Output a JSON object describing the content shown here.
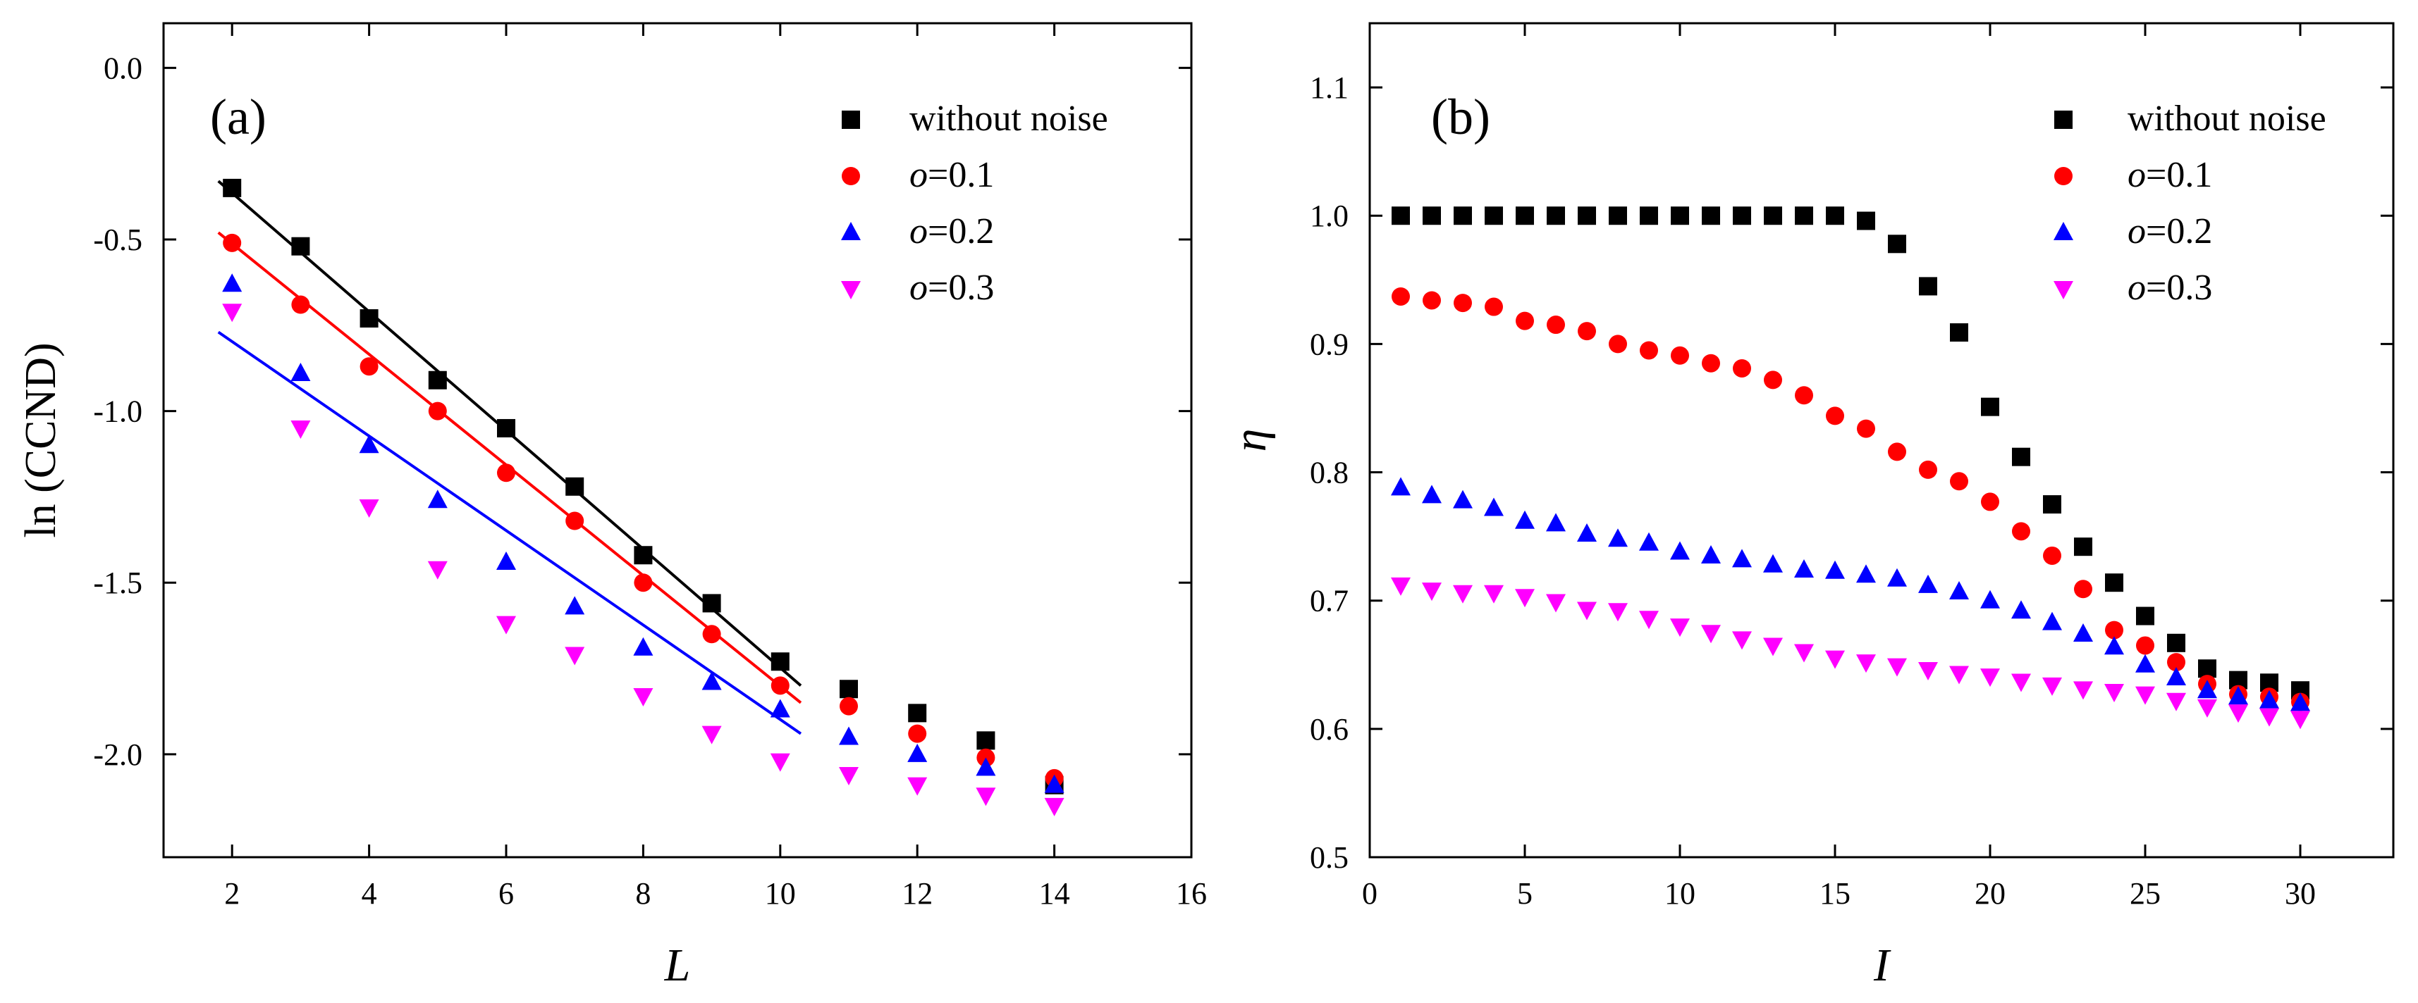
{
  "chart_data": [
    {
      "type": "scatter",
      "panel_label": "(a)",
      "xlabel": "L",
      "ylabel": "ln (CCND)",
      "xlim": [
        1,
        16
      ],
      "ylim": [
        -2.3,
        0.13
      ],
      "xticks": [
        2,
        4,
        6,
        8,
        10,
        12,
        14,
        16
      ],
      "yticks": [
        0.0,
        -0.5,
        -1.0,
        -1.5,
        -2.0
      ],
      "xtick_labels": [
        "2",
        "4",
        "6",
        "8",
        "10",
        "12",
        "14",
        "16"
      ],
      "ytick_labels": [
        "0.0",
        "-0.5",
        "-1.0",
        "-1.5",
        "-2.0"
      ],
      "legend_position": "top-right",
      "series": [
        {
          "name": "without noise",
          "label_italic": "",
          "label_rest": "without noise",
          "marker": "square",
          "color": "#000000",
          "x": [
            2,
            3,
            4,
            5,
            6,
            7,
            8,
            9,
            10,
            11,
            12,
            13,
            14
          ],
          "y": [
            -0.35,
            -0.52,
            -0.73,
            -0.91,
            -1.05,
            -1.22,
            -1.42,
            -1.56,
            -1.73,
            -1.81,
            -1.88,
            -1.96,
            -2.09
          ]
        },
        {
          "name": "o=0.1",
          "label_italic": "o",
          "label_rest": "=0.1",
          "marker": "circle",
          "color": "#ff0000",
          "x": [
            2,
            3,
            4,
            5,
            6,
            7,
            8,
            9,
            10,
            11,
            12,
            13,
            14
          ],
          "y": [
            -0.51,
            -0.69,
            -0.87,
            -1.0,
            -1.18,
            -1.32,
            -1.5,
            -1.65,
            -1.8,
            -1.86,
            -1.94,
            -2.01,
            -2.07
          ]
        },
        {
          "name": "o=0.2",
          "label_italic": "o",
          "label_rest": "=0.2",
          "marker": "triangle-up",
          "color": "#0000ff",
          "x": [
            2,
            3,
            4,
            5,
            6,
            7,
            8,
            9,
            10,
            11,
            12,
            13,
            14
          ],
          "y": [
            -0.63,
            -0.89,
            -1.1,
            -1.26,
            -1.44,
            -1.57,
            -1.69,
            -1.79,
            -1.87,
            -1.95,
            -2.0,
            -2.04,
            -2.09
          ]
        },
        {
          "name": "o=0.3",
          "label_italic": "o",
          "label_rest": "=0.3",
          "marker": "triangle-down",
          "color": "#ff00ff",
          "x": [
            2,
            3,
            4,
            5,
            6,
            7,
            8,
            9,
            10,
            11,
            12,
            13,
            14
          ],
          "y": [
            -0.71,
            -1.05,
            -1.28,
            -1.46,
            -1.62,
            -1.71,
            -1.83,
            -1.94,
            -2.02,
            -2.06,
            -2.09,
            -2.12,
            -2.15
          ]
        }
      ],
      "fit_lines": [
        {
          "series": "without noise",
          "color": "#000000",
          "x": [
            1.8,
            10.3
          ],
          "y": [
            -0.33,
            -1.8
          ]
        },
        {
          "series": "o=0.1",
          "color": "#ff0000",
          "x": [
            1.8,
            10.3
          ],
          "y": [
            -0.48,
            -1.85
          ]
        },
        {
          "series": "o=0.2",
          "color": "#0000ff",
          "x": [
            1.8,
            10.3
          ],
          "y": [
            -0.77,
            -1.94
          ]
        }
      ]
    },
    {
      "type": "scatter",
      "panel_label": "(b)",
      "xlabel": "I",
      "ylabel": "η",
      "xlim": [
        0,
        33
      ],
      "ylim": [
        0.5,
        1.15
      ],
      "xticks": [
        0,
        5,
        10,
        15,
        20,
        25,
        30
      ],
      "yticks": [
        0.5,
        0.6,
        0.7,
        0.8,
        0.9,
        1.0,
        1.1
      ],
      "xtick_labels": [
        "0",
        "5",
        "10",
        "15",
        "20",
        "25",
        "30"
      ],
      "ytick_labels": [
        "0.5",
        "0.6",
        "0.7",
        "0.8",
        "0.9",
        "1.0",
        "1.1"
      ],
      "legend_position": "top-right",
      "series": [
        {
          "name": "without noise",
          "label_italic": "",
          "label_rest": "without noise",
          "marker": "square",
          "color": "#000000",
          "x": [
            1,
            2,
            3,
            4,
            5,
            6,
            7,
            8,
            9,
            10,
            11,
            12,
            13,
            14,
            15,
            16,
            17,
            18,
            19,
            20,
            21,
            22,
            23,
            24,
            25,
            26,
            27,
            28,
            29,
            30
          ],
          "y": [
            1.0,
            1.0,
            1.0,
            1.0,
            1.0,
            1.0,
            1.0,
            1.0,
            1.0,
            1.0,
            1.0,
            1.0,
            1.0,
            1.0,
            1.0,
            0.996,
            0.978,
            0.945,
            0.909,
            0.851,
            0.812,
            0.775,
            0.742,
            0.714,
            0.688,
            0.667,
            0.647,
            0.638,
            0.636,
            0.63
          ]
        },
        {
          "name": "o=0.1",
          "label_italic": "o",
          "label_rest": "=0.1",
          "marker": "circle",
          "color": "#ff0000",
          "x": [
            1,
            2,
            3,
            4,
            5,
            6,
            7,
            8,
            9,
            10,
            11,
            12,
            13,
            14,
            15,
            16,
            17,
            18,
            19,
            20,
            21,
            22,
            23,
            24,
            25,
            26,
            27,
            28,
            29,
            30
          ],
          "y": [
            0.937,
            0.934,
            0.932,
            0.929,
            0.918,
            0.915,
            0.91,
            0.9,
            0.895,
            0.891,
            0.885,
            0.881,
            0.872,
            0.86,
            0.844,
            0.834,
            0.816,
            0.802,
            0.793,
            0.777,
            0.754,
            0.735,
            0.709,
            0.677,
            0.665,
            0.652,
            0.635,
            0.627,
            0.625,
            0.621
          ]
        },
        {
          "name": "o=0.2",
          "label_italic": "o",
          "label_rest": "=0.2",
          "marker": "triangle-up",
          "color": "#0000ff",
          "x": [
            1,
            2,
            3,
            4,
            5,
            6,
            7,
            8,
            9,
            10,
            11,
            12,
            13,
            14,
            15,
            16,
            17,
            18,
            19,
            20,
            21,
            22,
            23,
            24,
            25,
            26,
            27,
            28,
            29,
            30
          ],
          "y": [
            0.788,
            0.782,
            0.778,
            0.772,
            0.762,
            0.76,
            0.752,
            0.748,
            0.745,
            0.738,
            0.735,
            0.732,
            0.728,
            0.724,
            0.723,
            0.72,
            0.717,
            0.712,
            0.707,
            0.7,
            0.692,
            0.683,
            0.674,
            0.664,
            0.65,
            0.64,
            0.63,
            0.625,
            0.622,
            0.62
          ]
        },
        {
          "name": "o=0.3",
          "label_italic": "o",
          "label_rest": "=0.3",
          "marker": "triangle-down",
          "color": "#ff00ff",
          "x": [
            1,
            2,
            3,
            4,
            5,
            6,
            7,
            8,
            9,
            10,
            11,
            12,
            13,
            14,
            15,
            16,
            17,
            18,
            19,
            20,
            21,
            22,
            23,
            24,
            25,
            26,
            27,
            28,
            29,
            30
          ],
          "y": [
            0.712,
            0.708,
            0.706,
            0.706,
            0.703,
            0.699,
            0.693,
            0.692,
            0.686,
            0.68,
            0.675,
            0.67,
            0.665,
            0.66,
            0.655,
            0.652,
            0.649,
            0.646,
            0.643,
            0.641,
            0.637,
            0.634,
            0.631,
            0.629,
            0.627,
            0.622,
            0.617,
            0.613,
            0.61,
            0.608
          ]
        }
      ]
    }
  ]
}
